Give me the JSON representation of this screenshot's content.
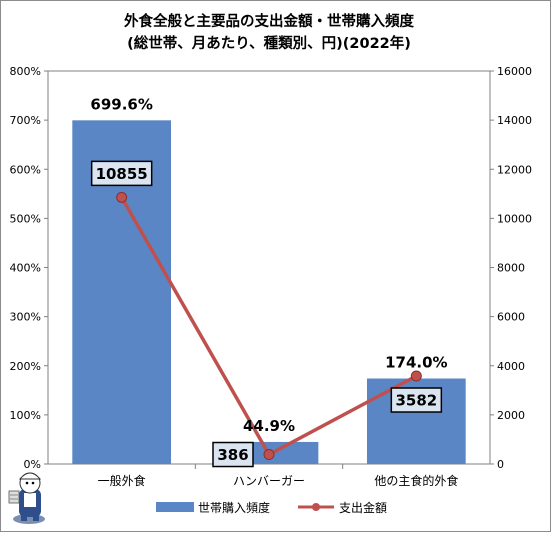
{
  "chart_data": {
    "type": "bar+line",
    "title_line1": "外食全般と主要品の支出金額・世帯購入頻度",
    "title_line2": "(総世帯、月あたり、種類別、円)(2022年)",
    "categories": [
      "一般外食",
      "ハンバーガー",
      "他の主食的外食"
    ],
    "series": [
      {
        "name": "世帯購入頻度",
        "type": "bar",
        "axis": "left",
        "values": [
          699.6,
          44.9,
          174.0
        ],
        "labels": [
          "699.6%",
          "44.9%",
          "174.0%"
        ],
        "color": "#5b86c5"
      },
      {
        "name": "支出金額",
        "type": "line",
        "axis": "right",
        "values": [
          10855,
          386,
          3582
        ],
        "labels": [
          "10855",
          "386",
          "3582"
        ],
        "color": "#c0504d"
      }
    ],
    "left_axis": {
      "min": 0,
      "max": 800,
      "step": 100,
      "ticks": [
        "0%",
        "100%",
        "200%",
        "300%",
        "400%",
        "500%",
        "600%",
        "700%",
        "800%"
      ]
    },
    "right_axis": {
      "min": 0,
      "max": 16000,
      "step": 2000,
      "ticks": [
        "0",
        "2000",
        "4000",
        "6000",
        "8000",
        "10000",
        "12000",
        "14000",
        "16000"
      ]
    },
    "grid": false,
    "legend_position": "bottom"
  },
  "colors": {
    "bar": "#5b86c5",
    "line": "#c0504d",
    "marker_fill": "#c0504d",
    "label_box_fill": "#dbe5f1"
  },
  "icons": {
    "mascot": "mascot-icon"
  }
}
